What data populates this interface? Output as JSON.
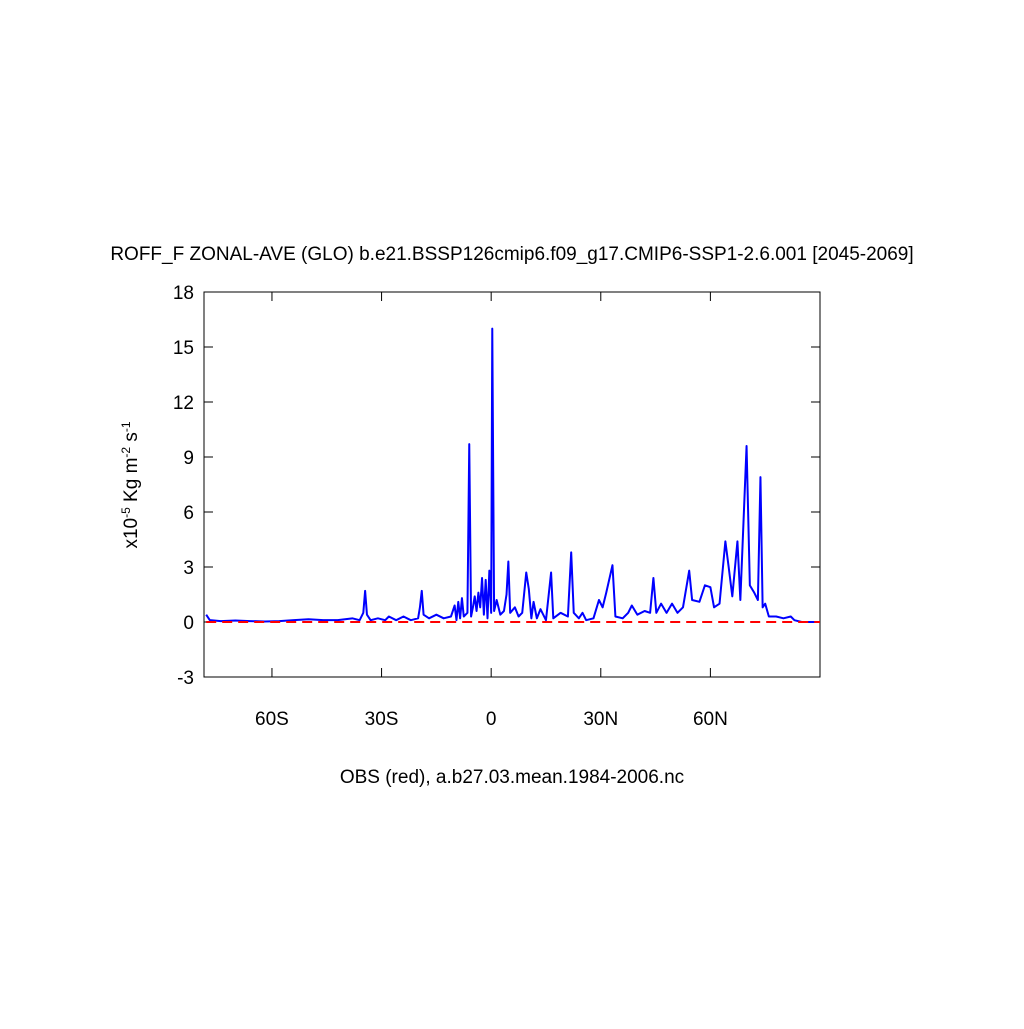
{
  "chart_data": {
    "type": "line",
    "title": "ROFF_F ZONAL-AVE (GLO) b.e21.BSSP126cmip6.f09_g17.CMIP6-SSP1-2.6.001 [2045-2069]",
    "xlabel": "OBS (red), a.b27.03.mean.1984-2006.nc",
    "ylabel_parts": [
      {
        "text": "x10",
        "sup": false
      },
      {
        "text": "-5",
        "sup": true
      },
      {
        "text": " Kg m",
        "sup": false
      },
      {
        "text": "-2",
        "sup": true
      },
      {
        "text": " s",
        "sup": false
      },
      {
        "text": "-1",
        "sup": true
      }
    ],
    "xlim": [
      -78.6,
      90
    ],
    "ylim": [
      -3,
      18
    ],
    "xticks": [
      {
        "value": -60,
        "label": "60S"
      },
      {
        "value": -30,
        "label": "30S"
      },
      0,
      {
        "value": 30,
        "label": "30N"
      },
      {
        "value": 60,
        "label": "60N"
      }
    ],
    "yticks": [
      -3,
      0,
      3,
      6,
      9,
      12,
      15,
      18
    ],
    "series": [
      {
        "color": "#0000ff",
        "dash": false,
        "x": [
          -78,
          -77,
          -74,
          -70,
          -66,
          -62,
          -58,
          -54,
          -50,
          -46,
          -42,
          -38,
          -36,
          -35,
          -34.5,
          -34,
          -33,
          -31,
          -29,
          -28,
          -26,
          -24,
          -22,
          -20,
          -19.5,
          -19,
          -18.5,
          -17,
          -15,
          -13,
          -11,
          -10,
          -9.5,
          -9,
          -8.5,
          -8,
          -7.5,
          -6.5,
          -6,
          -5.5,
          -5,
          -4.5,
          -4,
          -3.5,
          -3,
          -2.5,
          -2,
          -1.5,
          -1,
          -0.5,
          0,
          0.3,
          0.8,
          1.5,
          2.5,
          3.5,
          4.2,
          4.7,
          5.2,
          6.5,
          7.5,
          8.5,
          9.6,
          10.3,
          11,
          11.6,
          12.5,
          13.5,
          15,
          16.4,
          17,
          19,
          21,
          21.9,
          22.6,
          24,
          25,
          26,
          28,
          29.5,
          30.5,
          31.5,
          33.2,
          34,
          36,
          37.5,
          38.5,
          40,
          42,
          43.5,
          44.4,
          45.2,
          46.5,
          48,
          49.5,
          51,
          52.5,
          54.2,
          55,
          57,
          58.5,
          60,
          61,
          62.5,
          64.1,
          65,
          66,
          67.4,
          68.2,
          69.9,
          70.8,
          72,
          73,
          73.7,
          74.3,
          75,
          76,
          78,
          80,
          82,
          83,
          85,
          90
        ],
        "values": [
          0.4,
          0.1,
          0.05,
          0.08,
          0.05,
          0.03,
          0.05,
          0.1,
          0.15,
          0.1,
          0.1,
          0.2,
          0.1,
          0.5,
          1.7,
          0.4,
          0.1,
          0.2,
          0.1,
          0.3,
          0.1,
          0.3,
          0.1,
          0.2,
          0.8,
          1.7,
          0.4,
          0.2,
          0.4,
          0.2,
          0.3,
          0.9,
          0.1,
          1.1,
          0.2,
          1.3,
          0.3,
          0.5,
          9.7,
          0.3,
          0.8,
          1.4,
          0.6,
          1.6,
          0.8,
          2.4,
          0.4,
          2.3,
          0.2,
          2.8,
          0.5,
          16,
          0.6,
          1.2,
          0.4,
          0.6,
          1.5,
          3.3,
          0.5,
          0.8,
          0.3,
          0.5,
          2.7,
          1.8,
          0.2,
          1.1,
          0.2,
          0.7,
          0.1,
          2.7,
          0.2,
          0.5,
          0.3,
          3.8,
          0.5,
          0.2,
          0.5,
          0.1,
          0.2,
          1.2,
          0.8,
          1.6,
          3.1,
          0.3,
          0.2,
          0.5,
          0.9,
          0.4,
          0.6,
          0.5,
          2.4,
          0.5,
          1.0,
          0.5,
          1.0,
          0.5,
          0.8,
          2.8,
          1.2,
          1.1,
          2.0,
          1.9,
          0.8,
          1.0,
          4.4,
          3.0,
          1.4,
          4.4,
          1.2,
          9.6,
          2.0,
          1.6,
          1.2,
          7.9,
          0.8,
          1.0,
          0.3,
          0.3,
          0.2,
          0.3,
          0.1,
          0,
          0
        ]
      },
      {
        "color": "#ff0000",
        "dash": true,
        "x": [
          -78,
          90
        ],
        "values": [
          0,
          0
        ]
      }
    ]
  }
}
